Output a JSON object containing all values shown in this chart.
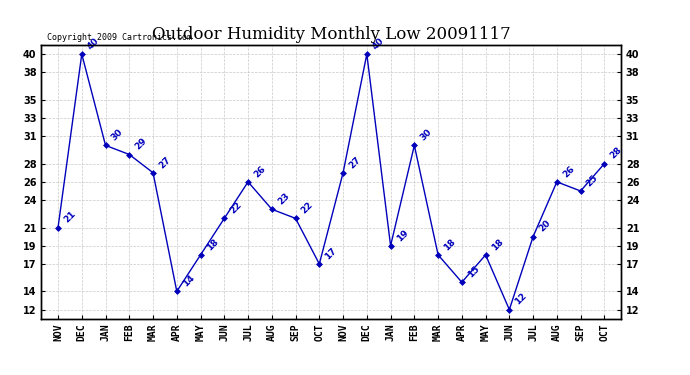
{
  "title": "Outdoor Humidity Monthly Low 20091117",
  "copyright": "Copyright 2009 Cartronics.com",
  "x_labels": [
    "NOV",
    "DEC",
    "JAN",
    "FEB",
    "MAR",
    "APR",
    "MAY",
    "JUN",
    "JUL",
    "AUG",
    "SEP",
    "OCT",
    "NOV",
    "DEC",
    "JAN",
    "FEB",
    "MAR",
    "APR",
    "MAY",
    "JUN",
    "JUL",
    "AUG",
    "SEP",
    "OCT"
  ],
  "y_values": [
    21,
    40,
    30,
    29,
    27,
    14,
    18,
    22,
    26,
    23,
    22,
    17,
    27,
    40,
    19,
    30,
    18,
    15,
    18,
    12,
    20,
    26,
    25,
    28
  ],
  "y_labels": [
    12,
    14,
    17,
    19,
    21,
    24,
    26,
    28,
    31,
    33,
    35,
    38,
    40
  ],
  "ylim": [
    11,
    41
  ],
  "line_color": "#0000bb",
  "marker_color": "#0000bb",
  "bg_color": "#ffffff",
  "grid_color": "#bbbbbb",
  "title_fontsize": 12,
  "label_fontsize": 7,
  "annotation_fontsize": 6.5,
  "copyright_fontsize": 6
}
